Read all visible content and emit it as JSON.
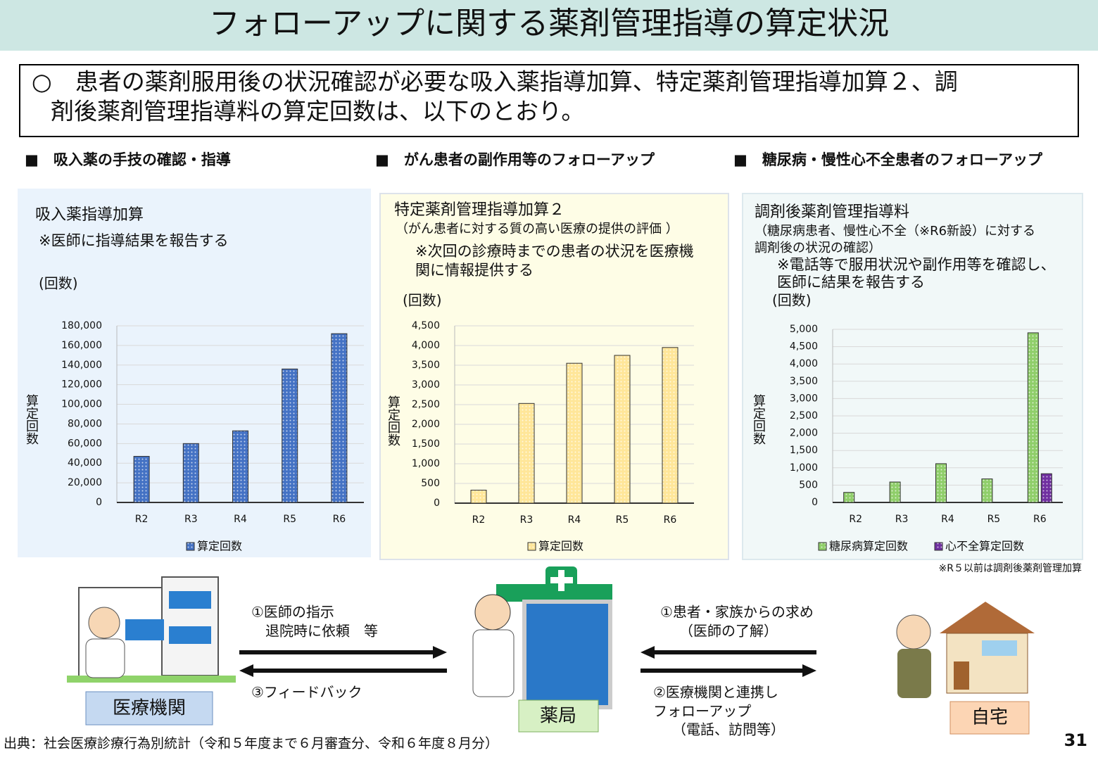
{
  "header": {
    "title": "フォローアップに関する薬剤管理指導の算定状況"
  },
  "summary": [
    "○　患者の薬剤服用後の状況確認が必要な吸入薬指導加算、特定薬剤管理指導加算２、調",
    "剤後薬剤管理指導料の算定回数は、以下のとおり。"
  ],
  "chart_data": [
    {
      "type": "bar",
      "section": "■　吸入薬の手技の確認・指導",
      "title": "吸入薬指導加算",
      "annotations": [
        "※医師に指導結果を報告する"
      ],
      "y_unit": "(回数)",
      "y_label": "算定回数",
      "categories": [
        "R2",
        "R3",
        "R4",
        "R5",
        "R6"
      ],
      "series": [
        {
          "name": "算定回数",
          "color": "#4472c4",
          "values": [
            47000,
            60000,
            73000,
            136000,
            172000
          ]
        }
      ],
      "ylim": [
        0,
        180000
      ],
      "yticks": [
        0,
        {
          "value": 20000,
          "label": "20,000"
        },
        {
          "value": 40000,
          "label": "40,000"
        },
        {
          "value": 60000,
          "label": "60,000"
        },
        {
          "value": 80000,
          "label": "80,000"
        },
        {
          "value": 100000,
          "label": "100,000"
        },
        {
          "value": 120000,
          "label": "120,000"
        },
        {
          "value": 140000,
          "label": "140,000"
        },
        {
          "value": 160000,
          "label": "160,000"
        },
        {
          "value": 180000,
          "label": "180,000"
        }
      ],
      "grid": true,
      "legend": "bottom"
    },
    {
      "type": "bar",
      "section": "■　がん患者の副作用等のフォローアップ",
      "title": "特定薬剤管理指導加算２",
      "annotations": [
        "（がん患者に対する質の高い医療の提供の評価 ）",
        "※次回の診療時までの患者の状況を医療機",
        "関に情報提供する"
      ],
      "y_unit": "(回数)",
      "y_label": "算定回数",
      "categories": [
        "R2",
        "R3",
        "R4",
        "R5",
        "R6"
      ],
      "series": [
        {
          "name": "算定回数",
          "color": "#ffe699",
          "values": [
            330,
            2530,
            3550,
            3750,
            3950
          ]
        }
      ],
      "ylim": [
        0,
        4500
      ],
      "yticks": [
        0,
        500,
        {
          "value": 1000,
          "label": "1,000"
        },
        {
          "value": 1500,
          "label": "1,500"
        },
        {
          "value": 2000,
          "label": "2,000"
        },
        {
          "value": 2500,
          "label": "2,500"
        },
        {
          "value": 3000,
          "label": "3,000"
        },
        {
          "value": 3500,
          "label": "3,500"
        },
        {
          "value": 4000,
          "label": "4,000"
        },
        {
          "value": 4500,
          "label": "4,500"
        }
      ],
      "grid": true,
      "legend": "bottom"
    },
    {
      "type": "bar",
      "section": "■　糖尿病・慢性心不全患者のフォローアップ",
      "title": "調剤後薬剤管理指導料",
      "annotations": [
        "（糖尿病患者、慢性心不全（※R6新設）に対する",
        "調剤後の状況の確認）",
        "※電話等で服用状況や副作用等を確認し、",
        "医師に結果を報告する",
        "※R５以前は調剤後薬剤管理加算"
      ],
      "y_unit": "(回数)",
      "y_label": "算定回数",
      "categories": [
        "R2",
        "R3",
        "R4",
        "R5",
        "R6"
      ],
      "series": [
        {
          "name": "糖尿病算定回数",
          "color": "#8fce6a",
          "values": [
            290,
            590,
            1120,
            680,
            4900
          ]
        },
        {
          "name": "心不全算定回数",
          "color": "#7030a0",
          "values": [
            null,
            null,
            null,
            null,
            830
          ]
        }
      ],
      "ylim": [
        0,
        5000
      ],
      "yticks": [
        0,
        500,
        {
          "value": 1000,
          "label": "1,000"
        },
        {
          "value": 1500,
          "label": "1,500"
        },
        {
          "value": 2000,
          "label": "2,000"
        },
        {
          "value": 2500,
          "label": "2,500"
        },
        {
          "value": 3000,
          "label": "3,000"
        },
        {
          "value": 3500,
          "label": "3,500"
        },
        {
          "value": 4000,
          "label": "4,000"
        },
        {
          "value": 4500,
          "label": "4,500"
        },
        {
          "value": 5000,
          "label": "5,000"
        }
      ],
      "grid": true,
      "legend": "bottom"
    }
  ],
  "diagram": {
    "nodes": [
      "医療機関",
      "薬局",
      "自宅"
    ],
    "left_top": [
      "①医師の指示",
      "退院時に依頼　等"
    ],
    "left_bottom": "③フィードバック",
    "right_top": [
      "①患者・家族からの求め",
      "（医師の了解）"
    ],
    "right_bottom": [
      "②医療機関と連携し",
      "フォローアップ",
      "（電話、訪問等）"
    ]
  },
  "footer": {
    "source": "出典：社会医療診療行為別統計（令和５年度まで６月審査分、令和６年度８月分）",
    "page": "31"
  }
}
